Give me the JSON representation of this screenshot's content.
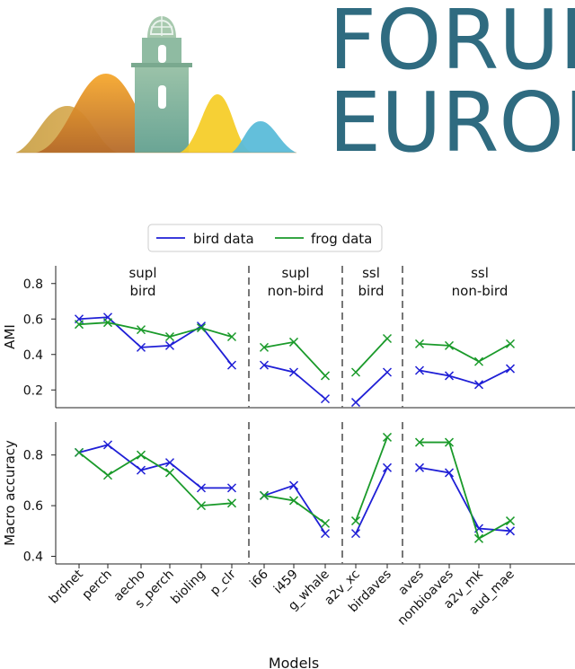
{
  "logo": {
    "line1": "FORUM",
    "line2": "EURON",
    "colors": {
      "text": "#2f6b80",
      "tower": "#7fb39a",
      "hill_orange": "#f2a93b",
      "hill_yellow": "#f5cd2a",
      "hill_blue": "#5bbcd9",
      "hill_brown": "#b06a2a"
    }
  },
  "legend": [
    {
      "label": "bird data",
      "color": "#1f1fd6"
    },
    {
      "label": "frog data",
      "color": "#1a9a2a"
    }
  ],
  "chart_data": [
    {
      "type": "line",
      "ylabel": "AMI",
      "ylim": [
        0.1,
        0.9
      ],
      "yticks": [
        0.2,
        0.4,
        0.6,
        0.8
      ],
      "groups": [
        {
          "line1": "supl",
          "line2": "bird",
          "models": [
            "brdnet",
            "perch",
            "aecho",
            "s_perch",
            "bioling",
            "p_clr"
          ]
        },
        {
          "line1": "supl",
          "line2": "non-bird",
          "models": [
            "i66",
            "i459",
            "g_whale"
          ]
        },
        {
          "line1": "ssl",
          "line2": "bird",
          "models": [
            "a2v_xc",
            "birdaves"
          ]
        },
        {
          "line1": "ssl",
          "line2": "non-bird",
          "models": [
            "aves",
            "nonbioaves",
            "a2v_mk",
            "aud_mae"
          ]
        }
      ],
      "series": [
        {
          "name": "bird data",
          "values": [
            [
              0.6,
              0.61,
              0.44,
              0.45,
              0.56,
              0.34
            ],
            [
              0.34,
              0.3,
              0.15
            ],
            [
              0.13,
              0.3
            ],
            [
              0.31,
              0.28,
              0.23,
              0.32
            ]
          ]
        },
        {
          "name": "frog data",
          "values": [
            [
              0.57,
              0.58,
              0.54,
              0.5,
              0.55,
              0.5
            ],
            [
              0.44,
              0.47,
              0.28
            ],
            [
              0.3,
              0.49
            ],
            [
              0.46,
              0.45,
              0.36,
              0.46
            ]
          ]
        }
      ]
    },
    {
      "type": "line",
      "ylabel": "Macro accuracy",
      "ylim": [
        0.37,
        0.93
      ],
      "yticks": [
        0.4,
        0.6,
        0.8
      ],
      "series": [
        {
          "name": "bird data",
          "values": [
            [
              0.81,
              0.84,
              0.74,
              0.77,
              0.67,
              0.67
            ],
            [
              0.64,
              0.68,
              0.49
            ],
            [
              0.49,
              0.75
            ],
            [
              0.75,
              0.73,
              0.51,
              0.5
            ]
          ]
        },
        {
          "name": "frog data",
          "values": [
            [
              0.81,
              0.72,
              0.8,
              0.73,
              0.6,
              0.61
            ],
            [
              0.64,
              0.62,
              0.53
            ],
            [
              0.54,
              0.87
            ],
            [
              0.85,
              0.85,
              0.47,
              0.54
            ]
          ]
        }
      ]
    }
  ],
  "xlabel": "Models",
  "models": [
    "brdnet",
    "perch",
    "aecho",
    "s_perch",
    "bioling",
    "p_clr",
    "i66",
    "i459",
    "g_whale",
    "a2v_xc",
    "birdaves",
    "aves",
    "nonbioaves",
    "a2v_mk",
    "aud_mae"
  ]
}
